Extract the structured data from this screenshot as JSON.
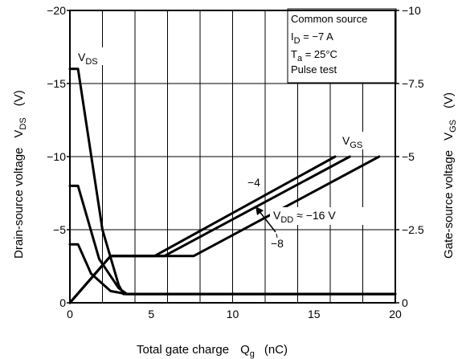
{
  "chart_data": {
    "type": "line",
    "x_axis": {
      "label_main": "Total gate charge",
      "label_sym": "Q",
      "label_sub": "g",
      "label_unit": "(nC)",
      "range": [
        0,
        20
      ],
      "ticks": [
        0,
        5,
        10,
        15,
        20
      ],
      "tick_labels": [
        "0",
        "5",
        "10",
        "15",
        "20"
      ]
    },
    "y_left": {
      "label_main": "Drain-source voltage",
      "label_sym": "V",
      "label_sub": "DS",
      "label_unit": "(V)",
      "range": [
        0,
        -20
      ],
      "ticks": [
        0,
        -5,
        -10,
        -15,
        -20
      ],
      "tick_labels": [
        "0",
        "−5",
        "−10",
        "−15",
        "−20"
      ]
    },
    "y_right": {
      "label_main": "Gate-source voltage",
      "label_sym": "V",
      "label_sub": "GS",
      "label_unit": "(V)",
      "range": [
        0,
        -10
      ],
      "ticks": [
        0,
        -2.5,
        -5,
        -7.5,
        -10
      ],
      "tick_labels": [
        "0",
        "−2.5",
        "−5",
        "−7.5",
        "−10"
      ]
    },
    "grid": true,
    "grid_x_step": 2,
    "grid_y_step": -2.5,
    "conditions": {
      "line1": "Common source",
      "line2_sym": "I",
      "line2_sub": "D",
      "line2_rest": " = −7 A",
      "line3_sym": "T",
      "line3_sub": "a",
      "line3_rest": " = 25°C",
      "line4": "Pulse test",
      "position": "top-right"
    },
    "annotations": {
      "vds_sym": "V",
      "vds_sub": "DS",
      "vgs_sym": "V",
      "vgs_sub": "GS",
      "vdd_sym": "V",
      "vdd_sub": "DD",
      "vdd_rest": " ≈ −16 V",
      "minus4": "−4",
      "minus8": "−8"
    },
    "series": [
      {
        "axis": "left",
        "x": [
          0,
          0.5,
          2,
          3,
          3.3,
          20
        ],
        "y": [
          -16,
          -16,
          -5,
          -1.2,
          -0.6,
          -0.6
        ]
      },
      {
        "axis": "left",
        "x": [
          0,
          0.5,
          1.8,
          3,
          3.5,
          20
        ],
        "y": [
          -8,
          -8,
          -3,
          -1.0,
          -0.6,
          -0.6
        ]
      },
      {
        "axis": "left",
        "x": [
          0,
          0.5,
          1.3,
          2.5,
          3.5,
          20
        ],
        "y": [
          -4,
          -4,
          -2,
          -0.8,
          -0.6,
          -0.6
        ]
      },
      {
        "axis": "right",
        "x": [
          0,
          2.5,
          5.2,
          16.3
        ],
        "y": [
          0,
          -1.6,
          -1.6,
          -5.0
        ]
      },
      {
        "axis": "right",
        "x": [
          0,
          2.5,
          5.8,
          17.2
        ],
        "y": [
          0,
          -1.6,
          -1.6,
          -5.0
        ]
      },
      {
        "axis": "right",
        "x": [
          0,
          2.5,
          7.6,
          19.0
        ],
        "y": [
          0,
          -1.6,
          -1.6,
          -5.0
        ]
      }
    ]
  }
}
